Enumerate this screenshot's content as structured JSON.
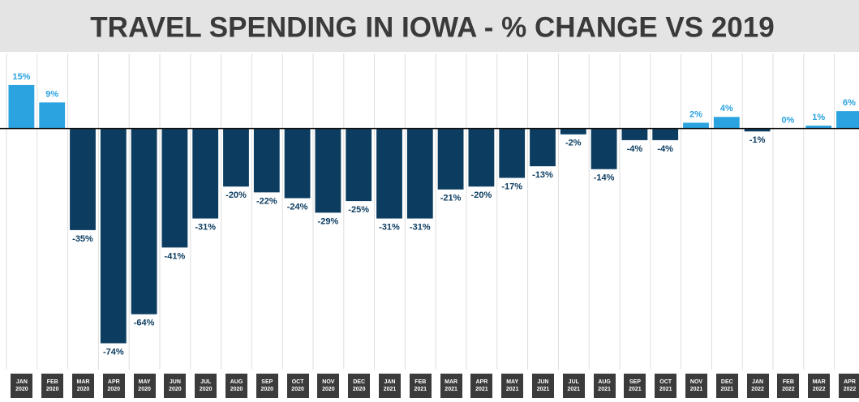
{
  "chart_data": {
    "type": "bar",
    "title": "TRAVEL SPENDING IN IOWA - % CHANGE VS 2019",
    "categories": [
      "JAN 2020",
      "FEB 2020",
      "MAR 2020",
      "APR 2020",
      "MAY 2020",
      "JUN 2020",
      "JUL 2020",
      "AUG 2020",
      "SEP 2020",
      "OCT 2020",
      "NOV 2020",
      "DEC 2020",
      "JAN 2021",
      "FEB 2021",
      "MAR 2021",
      "APR 2021",
      "MAY 2021",
      "JUN 2021",
      "JUL 2021",
      "AUG 2021",
      "SEP 2021",
      "OCT 2021",
      "NOV 2021",
      "DEC 2021",
      "JAN 2022",
      "FEB 2022",
      "MAR 2022",
      "APR 2022"
    ],
    "values": [
      15,
      9,
      -35,
      -74,
      -64,
      -41,
      -31,
      -20,
      -22,
      -24,
      -29,
      -25,
      -31,
      -31,
      -21,
      -20,
      -17,
      -13,
      -2,
      -14,
      -4,
      -4,
      2,
      4,
      -1,
      0,
      1,
      6
    ],
    "value_labels": [
      "15%",
      "9%",
      "-35%",
      "-74%",
      "-64%",
      "-41%",
      "-31%",
      "-20%",
      "-22%",
      "-24%",
      "-29%",
      "-25%",
      "-31%",
      "-31%",
      "-21%",
      "-20%",
      "-17%",
      "-13%",
      "-2%",
      "-14%",
      "-4%",
      "-4%",
      "2%",
      "4%",
      "-1%",
      "0%",
      "1%",
      "6%"
    ],
    "positive_color": "#2aa3e0",
    "negative_color": "#0c3d61",
    "ylim": [
      -80,
      20
    ]
  }
}
